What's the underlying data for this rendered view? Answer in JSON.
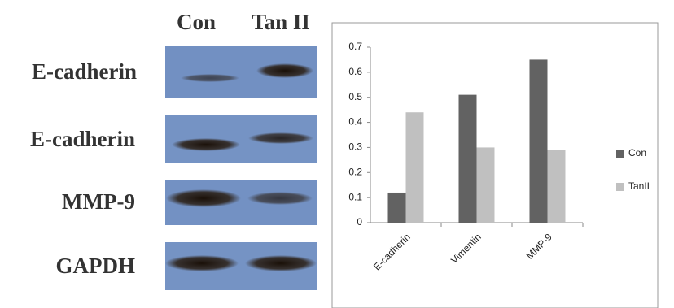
{
  "blot": {
    "lanes": [
      "Con",
      "Tan II"
    ],
    "rows": [
      "E-cadherin",
      "E-cadherin",
      "MMP-9",
      "GAPDH"
    ]
  },
  "chart_data": {
    "type": "bar",
    "categories": [
      "E-cadherin",
      "Vimentin",
      "MMP-9"
    ],
    "series": [
      {
        "name": "Con",
        "color": "#626262",
        "values": [
          0.12,
          0.51,
          0.65
        ]
      },
      {
        "name": "TanII",
        "color": "#c0c0c0",
        "values": [
          0.44,
          0.3,
          0.29
        ]
      }
    ],
    "ylim": [
      0,
      0.7
    ],
    "yticks": [
      0,
      0.1,
      0.2,
      0.3,
      0.4,
      0.5,
      0.6,
      0.7
    ],
    "legend": "right"
  }
}
